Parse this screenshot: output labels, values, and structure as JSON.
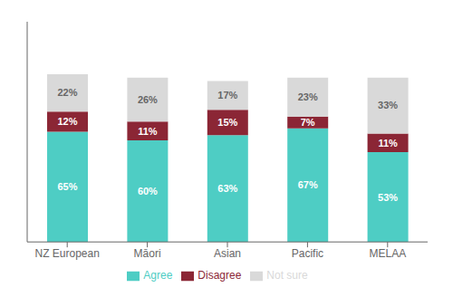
{
  "chart_data": {
    "type": "bar",
    "stacked": true,
    "categories": [
      "NZ European",
      "Māori",
      "Asian",
      "Pacific",
      "MELAA"
    ],
    "series": [
      {
        "name": "Agree",
        "color": "#4ECDC4",
        "values": [
          65,
          60,
          63,
          67,
          53
        ],
        "value_labels": [
          "65%",
          "60%",
          "63%",
          "67%",
          "53%"
        ]
      },
      {
        "name": "Disagree",
        "color": "#8B2635",
        "values": [
          12,
          11,
          15,
          7,
          11
        ],
        "value_labels": [
          "12%",
          "11%",
          "15%",
          "7%",
          "11%"
        ]
      },
      {
        "name": "Not sure",
        "color": "#D9D9D9",
        "values": [
          22,
          26,
          17,
          23,
          33
        ],
        "value_labels": [
          "22%",
          "26%",
          "17%",
          "23%",
          "33%"
        ]
      }
    ],
    "ylim": [
      0,
      130
    ],
    "yticks": [],
    "tick_labels": "x",
    "data_labels": true,
    "legend": "bottom",
    "grid": false
  }
}
